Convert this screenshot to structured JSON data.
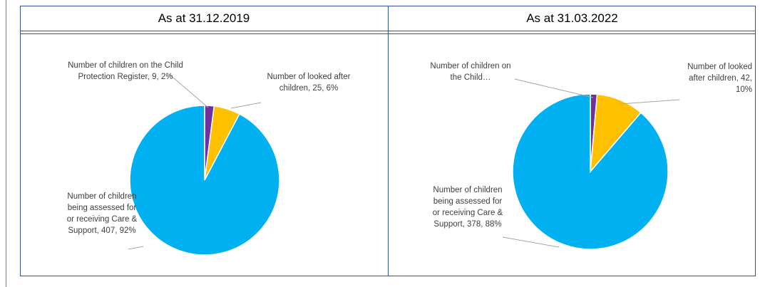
{
  "charts": [
    {
      "header": "As at 31.12.2019",
      "labels": {
        "cpr": "Number of children on the Child Protection Register, 9, 2%",
        "lac": "Number of looked after children, 25, 6%",
        "cs": "Number of children being assessed for or receiving Care & Support, 407, 92%"
      }
    },
    {
      "header": "As at 31.03.2022",
      "labels": {
        "cpr": "Number of children on the Child…",
        "lac": "Number of looked after children, 42, 10%",
        "cs": "Number of children being assessed for or receiving Care & Support, 378, 88%"
      }
    }
  ],
  "chart_data": [
    {
      "type": "pie",
      "title": "As at 31.12.2019",
      "categories": [
        "Number of children on the Child Protection Register",
        "Number of looked after children",
        "Number of children being assessed for or receiving Care & Support"
      ],
      "values": [
        9,
        25,
        407
      ],
      "percentages": [
        2,
        6,
        92
      ],
      "colors": [
        "#7030a0",
        "#ffc000",
        "#00b0f0"
      ],
      "legend": "none"
    },
    {
      "type": "pie",
      "title": "As at 31.03.2022",
      "categories": [
        "Number of children on the Child Protection Register",
        "Number of looked after children",
        "Number of children being assessed for or receiving Care & Support"
      ],
      "values": [
        6,
        42,
        378
      ],
      "percentages": [
        1,
        10,
        88
      ],
      "colors": [
        "#7030a0",
        "#ffc000",
        "#00b0f0"
      ],
      "legend": "none"
    }
  ]
}
